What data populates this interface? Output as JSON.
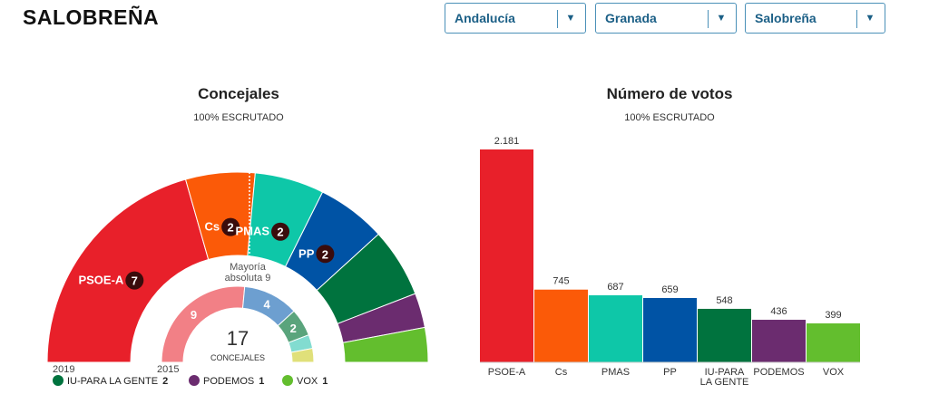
{
  "header": {
    "title": "SALOBREÑA",
    "selectors": [
      {
        "value": "Andalucía"
      },
      {
        "value": "Granada"
      },
      {
        "value": "Salobreña"
      }
    ],
    "arrow_icon": "▼"
  },
  "seats_chart": {
    "title": "Concejales",
    "subtitle": "100% ESCRUTADO",
    "majority_line1": "Mayoría",
    "majority_line2": "absoluta 9",
    "total": "17",
    "total_label": "CONCEJALES",
    "year_outer": "2019",
    "year_inner": "2015"
  },
  "votes_chart": {
    "title": "Número de votos",
    "subtitle": "100% ESCRUTADO"
  },
  "legend": [
    {
      "label": "IU-PARA LA GENTE",
      "seats": "2",
      "color": "#00733e"
    },
    {
      "label": "PODEMOS",
      "seats": "1",
      "color": "#6b2c6f"
    },
    {
      "label": "VOX",
      "seats": "1",
      "color": "#63be2e"
    }
  ],
  "chart_data": [
    {
      "type": "pie",
      "subtype": "semicircle",
      "title": "Concejales",
      "series": [
        {
          "name": "2019",
          "categories": [
            "PSOE-A",
            "Cs",
            "PMAS",
            "PP",
            "IU-PARA LA GENTE",
            "PODEMOS",
            "VOX"
          ],
          "values": [
            7,
            2,
            2,
            2,
            2,
            1,
            1
          ],
          "colors": [
            "#e8202a",
            "#fb5a08",
            "#0ec7a8",
            "#0053a5",
            "#00733e",
            "#6b2c6f",
            "#63be2e"
          ],
          "labels": [
            "PSOE-A",
            "Cs",
            "PMAS",
            "PP",
            "",
            "",
            ""
          ]
        },
        {
          "name": "2015",
          "values": [
            9,
            4,
            2,
            1,
            1
          ],
          "colors": [
            "#f28086",
            "#6d9fd0",
            "#5aa47c",
            "#82dcd0",
            "#e0e07a"
          ],
          "labels": [
            "9",
            "4",
            "2",
            "",
            ""
          ]
        }
      ],
      "total": 17
    },
    {
      "type": "bar",
      "title": "Número de votos",
      "categories": [
        "PSOE-A",
        "Cs",
        "PMAS",
        "PP",
        "IU-PARA LA GENTE",
        "PODEMOS",
        "VOX"
      ],
      "category_labels": [
        [
          "PSOE-A"
        ],
        [
          "Cs"
        ],
        [
          "PMAS"
        ],
        [
          "PP"
        ],
        [
          "IU-PARA",
          "LA GENTE"
        ],
        [
          "PODEMOS"
        ],
        [
          "VOX"
        ]
      ],
      "values": [
        2181,
        745,
        687,
        659,
        548,
        436,
        399
      ],
      "value_labels": [
        "2.181",
        "745",
        "687",
        "659",
        "548",
        "436",
        "399"
      ],
      "colors": [
        "#e8202a",
        "#fb5a08",
        "#0ec7a8",
        "#0053a5",
        "#00733e",
        "#6b2c6f",
        "#63be2e"
      ],
      "ylim": [
        0,
        2181
      ]
    }
  ]
}
